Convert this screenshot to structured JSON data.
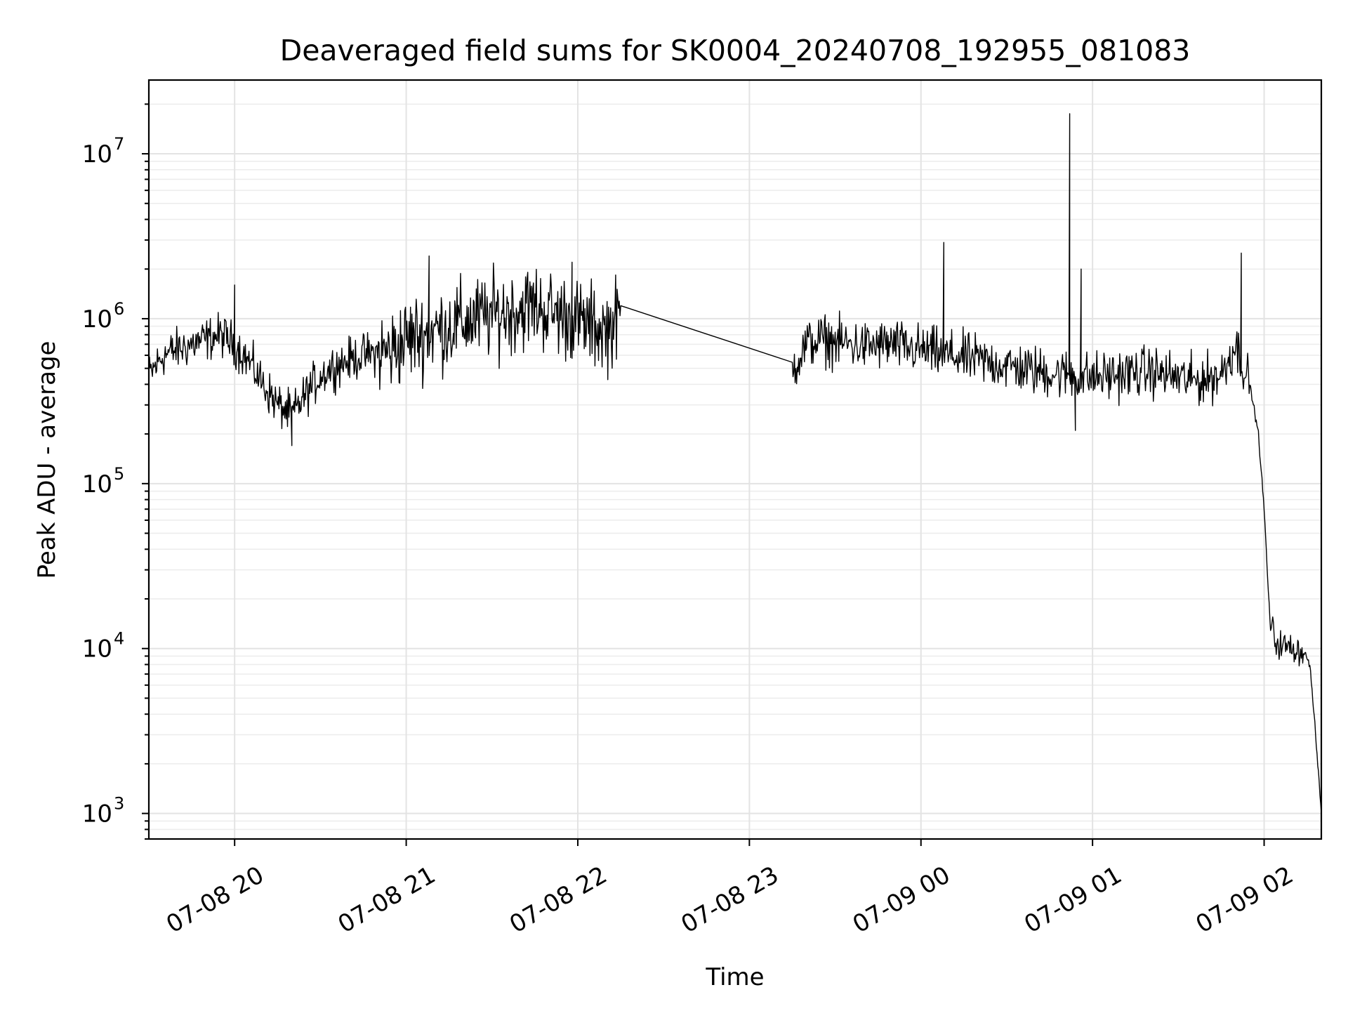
{
  "chart_data": {
    "type": "line",
    "title": "Deaveraged field sums for SK0004_20240708_192955_081083",
    "xlabel": "Time",
    "ylabel": "Peak ADU - average",
    "yscale": "log",
    "ylim": [
      700,
      28000000
    ],
    "xlim": [
      "2024-07-08 19:30",
      "2024-07-09 02:20"
    ],
    "grid": true,
    "x_ticks": [
      {
        "t": "2024-07-08 20:00",
        "label": "07-08 20"
      },
      {
        "t": "2024-07-08 21:00",
        "label": "07-08 21"
      },
      {
        "t": "2024-07-08 22:00",
        "label": "07-08 22"
      },
      {
        "t": "2024-07-08 23:00",
        "label": "07-08 23"
      },
      {
        "t": "2024-07-09 00:00",
        "label": "07-09 00"
      },
      {
        "t": "2024-07-09 01:00",
        "label": "07-09 01"
      },
      {
        "t": "2024-07-09 02:00",
        "label": "07-09 02"
      }
    ],
    "y_ticks": [
      {
        "value": 1000,
        "base": "10",
        "exp": "3"
      },
      {
        "value": 10000,
        "base": "10",
        "exp": "4"
      },
      {
        "value": 100000,
        "base": "10",
        "exp": "5"
      },
      {
        "value": 1000000,
        "base": "10",
        "exp": "6"
      },
      {
        "value": 10000000,
        "base": "10",
        "exp": "7"
      }
    ],
    "series": [
      {
        "x": [
          "2024-07-08 19:30",
          "2024-07-08 19:35",
          "2024-07-08 19:40",
          "2024-07-08 19:45",
          "2024-07-08 19:50",
          "2024-07-08 19:55",
          "2024-07-08 20:00",
          "2024-07-08 20:05",
          "2024-07-08 20:10",
          "2024-07-08 20:15",
          "2024-07-08 20:20",
          "2024-07-08 20:25",
          "2024-07-08 20:30",
          "2024-07-08 20:35",
          "2024-07-08 20:40",
          "2024-07-08 20:45",
          "2024-07-08 20:50",
          "2024-07-08 20:55",
          "2024-07-08 21:00",
          "2024-07-08 21:05",
          "2024-07-08 21:10",
          "2024-07-08 21:15",
          "2024-07-08 21:20",
          "2024-07-08 21:25",
          "2024-07-08 21:30",
          "2024-07-08 21:35",
          "2024-07-08 21:40",
          "2024-07-08 21:45",
          "2024-07-08 21:50",
          "2024-07-08 21:55",
          "2024-07-08 22:00",
          "2024-07-08 22:05",
          "2024-07-08 22:10",
          "2024-07-08 22:15",
          "2024-07-08 23:15",
          "2024-07-08 23:20",
          "2024-07-08 23:25",
          "2024-07-08 23:30",
          "2024-07-08 23:35",
          "2024-07-08 23:40",
          "2024-07-08 23:45",
          "2024-07-08 23:50",
          "2024-07-08 23:55",
          "2024-07-09 00:00",
          "2024-07-09 00:05",
          "2024-07-09 00:10",
          "2024-07-09 00:15",
          "2024-07-09 00:20",
          "2024-07-09 00:25",
          "2024-07-09 00:30",
          "2024-07-09 00:35",
          "2024-07-09 00:40",
          "2024-07-09 00:45",
          "2024-07-09 00:50",
          "2024-07-09 00:55",
          "2024-07-09 01:00",
          "2024-07-09 01:05",
          "2024-07-09 01:10",
          "2024-07-09 01:15",
          "2024-07-09 01:20",
          "2024-07-09 01:25",
          "2024-07-09 01:30",
          "2024-07-09 01:35",
          "2024-07-09 01:40",
          "2024-07-09 01:45",
          "2024-07-09 01:50",
          "2024-07-09 01:55",
          "2024-07-09 01:58",
          "2024-07-09 02:00",
          "2024-07-09 02:02",
          "2024-07-09 02:04",
          "2024-07-09 02:06",
          "2024-07-09 02:10",
          "2024-07-09 02:14",
          "2024-07-09 02:16",
          "2024-07-09 02:18",
          "2024-07-09 02:20"
        ],
        "y": [
          450000,
          600000,
          650000,
          700000,
          750000,
          800000,
          700000,
          550000,
          400000,
          300000,
          260000,
          350000,
          450000,
          520000,
          560000,
          600000,
          620000,
          640000,
          750000,
          800000,
          850000,
          900000,
          950000,
          1000000,
          1050000,
          1100000,
          1150000,
          1200000,
          1100000,
          1050000,
          950000,
          900000,
          850000,
          1050000,
          500000,
          700000,
          750000,
          720000,
          700000,
          680000,
          690000,
          700000,
          660000,
          650000,
          620000,
          600000,
          580000,
          560000,
          540000,
          520000,
          500000,
          480000,
          470000,
          460000,
          450000,
          440000,
          450000,
          460000,
          470000,
          480000,
          460000,
          440000,
          420000,
          430000,
          460000,
          700000,
          400000,
          200000,
          70000,
          15000,
          11000,
          10500,
          10000,
          9500,
          8000,
          3000,
          1000
        ],
        "spikes": [
          {
            "x": "2024-07-08 20:00",
            "y": 1600000
          },
          {
            "x": "2024-07-08 20:20",
            "y": 170000
          },
          {
            "x": "2024-07-08 21:08",
            "y": 2400000
          },
          {
            "x": "2024-07-08 21:58",
            "y": 2200000
          },
          {
            "x": "2024-07-09 00:08",
            "y": 2900000
          },
          {
            "x": "2024-07-09 00:52",
            "y": 17500000
          },
          {
            "x": "2024-07-09 00:54",
            "y": 210000
          },
          {
            "x": "2024-07-09 00:56",
            "y": 2000000
          },
          {
            "x": "2024-07-09 01:52",
            "y": 2500000
          }
        ]
      }
    ]
  }
}
